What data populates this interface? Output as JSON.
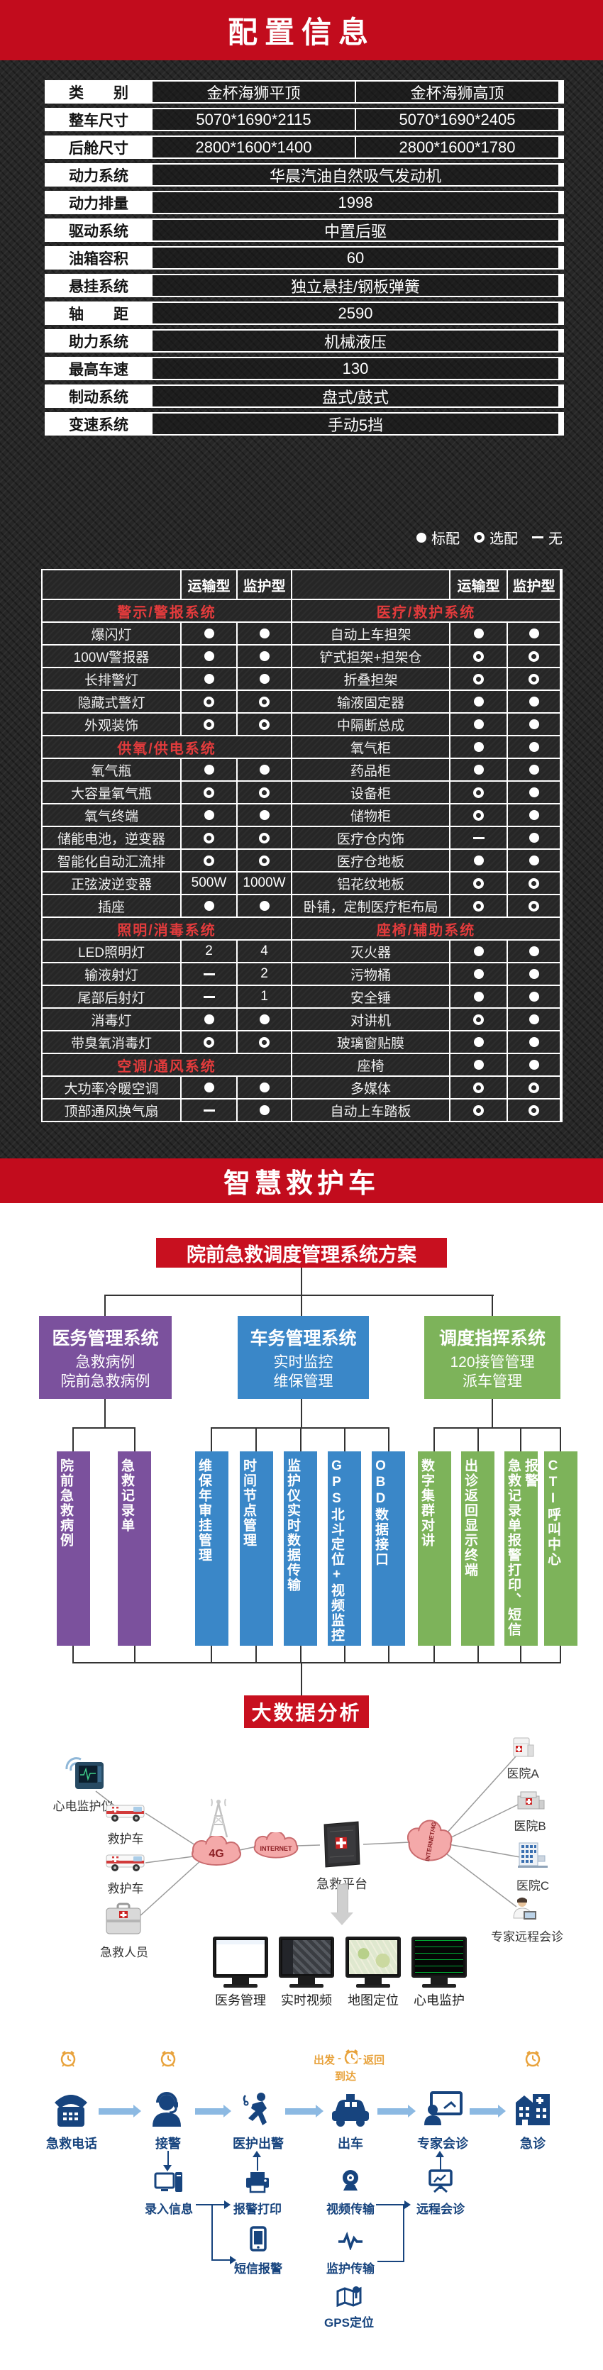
{
  "banner_top": {
    "title": "配置信息"
  },
  "spec_table": {
    "rows": [
      {
        "label": "类　　别",
        "values": [
          "金杯海狮平顶",
          "金杯海狮高顶"
        ]
      },
      {
        "label": "整车尺寸",
        "values": [
          "5070*1690*2115",
          "5070*1690*2405"
        ]
      },
      {
        "label": "后舱尺寸",
        "values": [
          "2800*1600*1400",
          "2800*1600*1780"
        ]
      },
      {
        "label": "动力系统",
        "values": [
          "华晨汽油自然吸气发动机"
        ]
      },
      {
        "label": "动力排量",
        "values": [
          "1998"
        ]
      },
      {
        "label": "驱动系统",
        "values": [
          "中置后驱"
        ]
      },
      {
        "label": "油箱容积",
        "values": [
          "60"
        ]
      },
      {
        "label": "悬挂系统",
        "values": [
          "独立悬挂/钢板弹簧"
        ]
      },
      {
        "label": "轴　　距",
        "values": [
          "2590"
        ]
      },
      {
        "label": "助力系统",
        "values": [
          "机械液压"
        ]
      },
      {
        "label": "最高车速",
        "values": [
          "130"
        ]
      },
      {
        "label": "制动系统",
        "values": [
          "盘式/鼓式"
        ]
      },
      {
        "label": "变速系统",
        "values": [
          "手动5挡"
        ]
      }
    ]
  },
  "legend": {
    "items": [
      {
        "marker": "std",
        "label": "标配"
      },
      {
        "marker": "opt",
        "label": "选配"
      },
      {
        "marker": "none",
        "label": "无"
      }
    ]
  },
  "config_table": {
    "col_headers": [
      "运输型",
      "监护型"
    ],
    "rows": [
      {
        "left": {
          "type": "section",
          "label": "警示/警报系统"
        },
        "right": {
          "type": "section",
          "label": "医疗/救护系统"
        }
      },
      {
        "left": {
          "type": "item",
          "label": "爆闪灯",
          "v1": "std",
          "v2": "std"
        },
        "right": {
          "type": "item",
          "label": "自动上车担架",
          "v1": "std",
          "v2": "std"
        }
      },
      {
        "left": {
          "type": "item",
          "label": "100W警报器",
          "v1": "std",
          "v2": "std"
        },
        "right": {
          "type": "item",
          "label": "铲式担架+担架仓",
          "v1": "opt",
          "v2": "opt"
        }
      },
      {
        "left": {
          "type": "item",
          "label": "长排警灯",
          "v1": "std",
          "v2": "std"
        },
        "right": {
          "type": "item",
          "label": "折叠担架",
          "v1": "opt",
          "v2": "opt"
        }
      },
      {
        "left": {
          "type": "item",
          "label": "隐藏式警灯",
          "v1": "opt",
          "v2": "opt"
        },
        "right": {
          "type": "item",
          "label": "输液固定器",
          "v1": "std",
          "v2": "std"
        }
      },
      {
        "left": {
          "type": "item",
          "label": "外观装饰",
          "v1": "opt",
          "v2": "opt"
        },
        "right": {
          "type": "item",
          "label": "中隔断总成",
          "v1": "std",
          "v2": "std"
        }
      },
      {
        "left": {
          "type": "section",
          "label": "供氧/供电系统"
        },
        "right": {
          "type": "item",
          "label": "氧气柜",
          "v1": "std",
          "v2": "std"
        }
      },
      {
        "left": {
          "type": "item",
          "label": "氧气瓶",
          "v1": "std",
          "v2": "std"
        },
        "right": {
          "type": "item",
          "label": "药品柜",
          "v1": "std",
          "v2": "std"
        }
      },
      {
        "left": {
          "type": "item",
          "label": "大容量氧气瓶",
          "v1": "opt",
          "v2": "opt"
        },
        "right": {
          "type": "item",
          "label": "设备柜",
          "v1": "opt",
          "v2": "std"
        }
      },
      {
        "left": {
          "type": "item",
          "label": "氧气终端",
          "v1": "std",
          "v2": "std"
        },
        "right": {
          "type": "item",
          "label": "储物柜",
          "v1": "opt",
          "v2": "std"
        }
      },
      {
        "left": {
          "type": "item",
          "label": "储能电池，逆变器",
          "v1": "opt",
          "v2": "opt"
        },
        "right": {
          "type": "item",
          "label": "医疗仓内饰",
          "v1": "none",
          "v2": "std"
        }
      },
      {
        "left": {
          "type": "item",
          "label": "智能化自动汇流排",
          "v1": "opt",
          "v2": "opt"
        },
        "right": {
          "type": "item",
          "label": "医疗仓地板",
          "v1": "std",
          "v2": "std"
        }
      },
      {
        "left": {
          "type": "item",
          "label": "正弦波逆变器",
          "v1": "500W",
          "v2": "1000W"
        },
        "right": {
          "type": "item",
          "label": "铝花纹地板",
          "v1": "opt",
          "v2": "opt"
        }
      },
      {
        "left": {
          "type": "item",
          "label": "插座",
          "v1": "std",
          "v2": "std"
        },
        "right": {
          "type": "item",
          "label": "卧铺，定制医疗柜布局",
          "v1": "opt",
          "v2": "opt"
        }
      },
      {
        "left": {
          "type": "section",
          "label": "照明/消毒系统"
        },
        "right": {
          "type": "section",
          "label": "座椅/辅助系统"
        }
      },
      {
        "left": {
          "type": "item",
          "label": "LED照明灯",
          "v1": "2",
          "v2": "4"
        },
        "right": {
          "type": "item",
          "label": "灭火器",
          "v1": "std",
          "v2": "std"
        }
      },
      {
        "left": {
          "type": "item",
          "label": "输液射灯",
          "v1": "none",
          "v2": "2"
        },
        "right": {
          "type": "item",
          "label": "污物桶",
          "v1": "std",
          "v2": "std"
        }
      },
      {
        "left": {
          "type": "item",
          "label": "尾部后射灯",
          "v1": "none",
          "v2": "1"
        },
        "right": {
          "type": "item",
          "label": "安全锤",
          "v1": "std",
          "v2": "std"
        }
      },
      {
        "left": {
          "type": "item",
          "label": "消毒灯",
          "v1": "std",
          "v2": "std"
        },
        "right": {
          "type": "item",
          "label": "对讲机",
          "v1": "opt",
          "v2": "std"
        }
      },
      {
        "left": {
          "type": "item",
          "label": "带臭氧消毒灯",
          "v1": "opt",
          "v2": "opt"
        },
        "right": {
          "type": "item",
          "label": "玻璃窗贴膜",
          "v1": "std",
          "v2": "std"
        }
      },
      {
        "left": {
          "type": "section",
          "label": "空调/通风系统"
        },
        "right": {
          "type": "item",
          "label": "座椅",
          "v1": "std",
          "v2": "std"
        }
      },
      {
        "left": {
          "type": "item",
          "label": "大功率冷暖空调",
          "v1": "std",
          "v2": "std"
        },
        "right": {
          "type": "item",
          "label": "多媒体",
          "v1": "opt",
          "v2": "opt"
        }
      },
      {
        "left": {
          "type": "item",
          "label": "顶部通风换气扇",
          "v1": "none",
          "v2": "std"
        },
        "right": {
          "type": "item",
          "label": "自动上车踏板",
          "v1": "opt",
          "v2": "opt"
        }
      }
    ]
  },
  "banner_smart": {
    "title": "智慧救护车"
  },
  "scheme": {
    "root": "院前急救调度管理系统方案",
    "bigdata": "大数据分析",
    "systems": [
      {
        "title": "医务管理系统",
        "lines": [
          "急救病例",
          "院前急救病例"
        ],
        "color": "#7b519d",
        "children": [
          "院前急救病例",
          "急救记录单"
        ]
      },
      {
        "title": "车务管理系统",
        "lines": [
          "实时监控",
          "维保管理"
        ],
        "color": "#3a87c8",
        "children": [
          "维保年审挂管理",
          "时间节点管理",
          "监护仪实时数据传输",
          "GPS北斗定位+视频监控",
          "OBD数据接口"
        ]
      },
      {
        "title": "调度指挥系统",
        "lines": [
          "120接管管理",
          "派车管理"
        ],
        "color": "#7db35a",
        "children": [
          "数字集群对讲",
          "出诊返回显示终端",
          "急救记录单报警打印、短信报警",
          "CTI呼叫中心"
        ]
      }
    ]
  },
  "network": {
    "labels": {
      "ecg": "心电监护仪",
      "amb1": "救护车",
      "amb2": "救护车",
      "staff": "急救人员",
      "cloud_4g": "4G",
      "cloud_internet": "INTERNET",
      "platform": "急救平台",
      "cloud_right": "INTERNET/4G",
      "hospital_a": "医院A",
      "hospital_b": "医院B",
      "hospital_c": "医院C",
      "expert": "专家远程会诊"
    },
    "monitors": [
      "医务管理",
      "实时视频",
      "地图定位",
      "心电监护"
    ]
  },
  "flow": {
    "steps": [
      "急救电话",
      "接警",
      "医护出警",
      "出车",
      "专家会诊",
      "急诊"
    ],
    "timeline": {
      "depart": "出发",
      "back": "返回",
      "arrive": "到达"
    },
    "subs": {
      "input": "录入信息",
      "print": "报警打印",
      "sms": "短信报警",
      "video": "视频传输",
      "monitor": "监护传输",
      "remote": "远程会诊",
      "gps": "GPS定位"
    }
  },
  "colors": {
    "banner_red": "#c20c1d",
    "box_red": "#c8101f",
    "section_red_text": "#e23b3c",
    "purple": "#7b519d",
    "blue": "#3a87c8",
    "green": "#7db35a",
    "flow_blue": "#17447e",
    "flow_arrow": "#8cb9e2",
    "orange": "#e8a23b",
    "cloud_pink": "#f4a9a9"
  }
}
